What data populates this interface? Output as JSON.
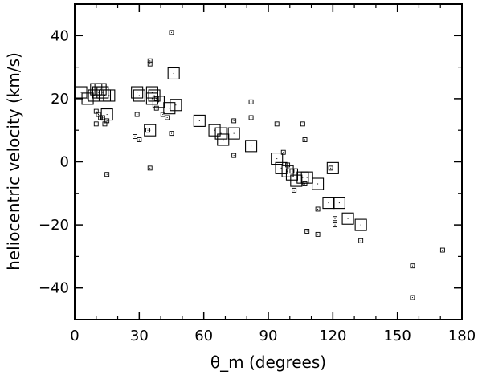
{
  "chart_data": {
    "type": "scatter",
    "xlabel": "θ_m (degrees)",
    "ylabel": "heliocentric velocity (km/s)",
    "xlim": [
      0,
      180
    ],
    "ylim": [
      -50,
      50
    ],
    "xticks": [
      0,
      30,
      60,
      90,
      120,
      150,
      180
    ],
    "yticks": [
      -40,
      -20,
      0,
      20,
      40
    ],
    "xtick_labels": [
      "0",
      "30",
      "60",
      "90",
      "120",
      "150",
      "180"
    ],
    "ytick_labels": [
      "−40",
      "−20",
      "0",
      "20",
      "40"
    ],
    "grid": false,
    "marker": "open-square",
    "marker_color": "#000000",
    "series": [
      {
        "marker_size": "small",
        "points": [
          [
            10,
            12
          ],
          [
            10,
            16
          ],
          [
            11,
            15
          ],
          [
            12,
            14
          ],
          [
            13,
            14
          ],
          [
            14,
            12
          ],
          [
            15,
            13
          ],
          [
            15,
            -4
          ],
          [
            28,
            8
          ],
          [
            29,
            15
          ],
          [
            30,
            7
          ],
          [
            34,
            10
          ],
          [
            35,
            32
          ],
          [
            35,
            31
          ],
          [
            35,
            -2
          ],
          [
            38,
            20
          ],
          [
            38,
            17
          ],
          [
            41,
            15
          ],
          [
            43,
            14
          ],
          [
            45,
            41
          ],
          [
            45,
            9
          ],
          [
            74,
            2
          ],
          [
            74,
            13
          ],
          [
            82,
            19
          ],
          [
            82,
            14
          ],
          [
            94,
            12
          ],
          [
            97,
            3
          ],
          [
            99,
            -1
          ],
          [
            101,
            -3
          ],
          [
            102,
            -9
          ],
          [
            106,
            12
          ],
          [
            107,
            7
          ],
          [
            107,
            -7
          ],
          [
            108,
            -22
          ],
          [
            113,
            -15
          ],
          [
            113,
            -23
          ],
          [
            119,
            -2
          ],
          [
            121,
            -18
          ],
          [
            121,
            -20
          ],
          [
            133,
            -25
          ],
          [
            157,
            -33
          ],
          [
            157,
            -43
          ],
          [
            171,
            -28
          ]
        ]
      },
      {
        "marker_size": "large",
        "points": [
          [
            3,
            22
          ],
          [
            6,
            20
          ],
          [
            9,
            21
          ],
          [
            10,
            23
          ],
          [
            11,
            22
          ],
          [
            12,
            23
          ],
          [
            13,
            22
          ],
          [
            14,
            21
          ],
          [
            16,
            21
          ],
          [
            15,
            15
          ],
          [
            29,
            22
          ],
          [
            30,
            21
          ],
          [
            36,
            22
          ],
          [
            36,
            20
          ],
          [
            37,
            21
          ],
          [
            39,
            19
          ],
          [
            44,
            17
          ],
          [
            47,
            18
          ],
          [
            46,
            28
          ],
          [
            35,
            10
          ],
          [
            58,
            13
          ],
          [
            65,
            10
          ],
          [
            68,
            9
          ],
          [
            69,
            7
          ],
          [
            74,
            9
          ],
          [
            82,
            5
          ],
          [
            94,
            1
          ],
          [
            96,
            -2
          ],
          [
            99,
            -3
          ],
          [
            101,
            -4
          ],
          [
            103,
            -6
          ],
          [
            106,
            -5
          ],
          [
            108,
            -5
          ],
          [
            113,
            -7
          ],
          [
            118,
            -13
          ],
          [
            120,
            -2
          ],
          [
            123,
            -13
          ],
          [
            127,
            -18
          ],
          [
            133,
            -20
          ]
        ]
      }
    ]
  }
}
